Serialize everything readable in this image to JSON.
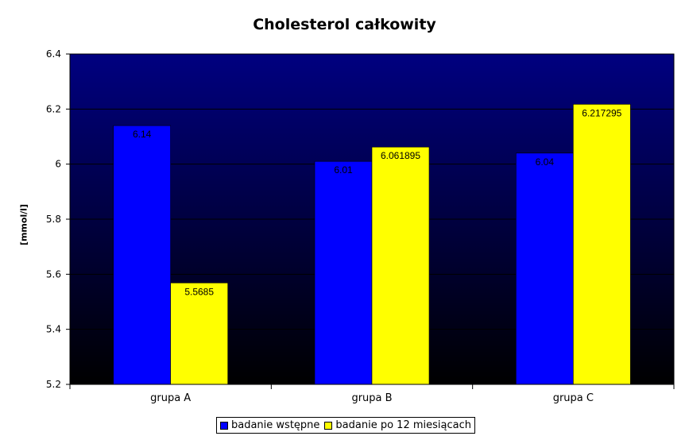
{
  "chart_data": {
    "type": "bar",
    "title": "Cholesterol całkowity",
    "ylabel": "[mmol/l]",
    "xlabel": "",
    "categories": [
      "grupa A",
      "grupa B",
      "grupa C"
    ],
    "series": [
      {
        "name": "badanie wstępne",
        "values": [
          6.14,
          6.01,
          6.04
        ],
        "labels": [
          "6.14",
          "6.01",
          "6.04"
        ],
        "color": "#0000ff"
      },
      {
        "name": "badanie po 12 miesiącach",
        "values": [
          5.5685,
          6.061895,
          6.217295
        ],
        "labels": [
          "5.5685",
          "6.061895",
          "6.217295"
        ],
        "color": "#ffff00"
      }
    ],
    "ylim": [
      5.2,
      6.4
    ],
    "yticks": [
      "5.2",
      "5.4",
      "5.6",
      "5.8",
      "6",
      "6.2",
      "6.4"
    ],
    "grid": true,
    "legend_position": "bottom",
    "background_gradient": [
      "#000080",
      "#000000"
    ]
  }
}
